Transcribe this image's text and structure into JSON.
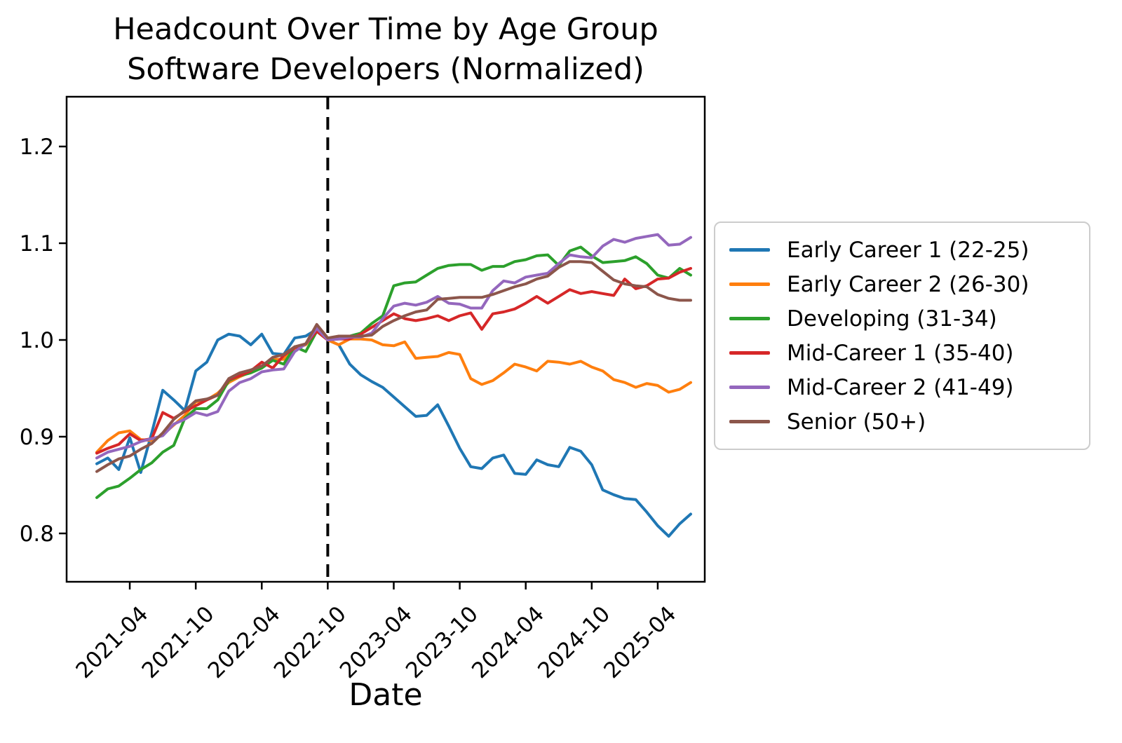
{
  "header": {
    "title_line1": "Headcount Over Time by Age Group",
    "title_line2": "Software Developers (Normalized)"
  },
  "axes": {
    "x_label": "Date",
    "y_tick_labels": [
      "0.8",
      "0.9",
      "1.0",
      "1.1",
      "1.2"
    ],
    "y_tick_values": [
      0.8,
      0.9,
      1.0,
      1.1,
      1.2
    ],
    "x_tick_labels": [
      "2021-04",
      "2021-10",
      "2022-04",
      "2022-10",
      "2023-04",
      "2023-10",
      "2024-04",
      "2024-10",
      "2025-04"
    ],
    "x_tick_month_indices": [
      3,
      9,
      15,
      21,
      27,
      33,
      39,
      45,
      51
    ]
  },
  "chart_data": {
    "type": "line",
    "title": "Headcount Over Time by Age Group\nSoftware Developers (Normalized)",
    "xlabel": "Date",
    "ylabel": "",
    "ylim": [
      0.75,
      1.251
    ],
    "grid": false,
    "legend_position": "right-outside",
    "reference_line": {
      "style": "vertical-dashed",
      "x": "2022-10",
      "month_index": 21,
      "color": "#000000",
      "note": "normalization point where all series equal 1.0"
    },
    "x": [
      "2021-01",
      "2021-02",
      "2021-03",
      "2021-04",
      "2021-05",
      "2021-06",
      "2021-07",
      "2021-08",
      "2021-09",
      "2021-10",
      "2021-11",
      "2021-12",
      "2022-01",
      "2022-02",
      "2022-03",
      "2022-04",
      "2022-05",
      "2022-06",
      "2022-07",
      "2022-08",
      "2022-09",
      "2022-10",
      "2022-11",
      "2022-12",
      "2023-01",
      "2023-02",
      "2023-03",
      "2023-04",
      "2023-05",
      "2023-06",
      "2023-07",
      "2023-08",
      "2023-09",
      "2023-10",
      "2023-11",
      "2023-12",
      "2024-01",
      "2024-02",
      "2024-03",
      "2024-04",
      "2024-05",
      "2024-06",
      "2024-07",
      "2024-08",
      "2024-09",
      "2024-10",
      "2024-11",
      "2024-12",
      "2025-01",
      "2025-02",
      "2025-03",
      "2025-04",
      "2025-05",
      "2025-06",
      "2025-07"
    ],
    "series": [
      {
        "name": "Early Career 1 (22-25)",
        "color": "#1f77b4",
        "values": [
          0.872,
          0.878,
          0.866,
          0.899,
          0.863,
          0.904,
          0.948,
          0.938,
          0.927,
          0.968,
          0.977,
          1.0,
          1.006,
          1.004,
          0.995,
          1.006,
          0.986,
          0.985,
          1.002,
          1.004,
          1.011,
          1.0,
          0.995,
          0.975,
          0.964,
          0.957,
          0.951,
          0.941,
          0.931,
          0.921,
          0.922,
          0.933,
          0.911,
          0.888,
          0.869,
          0.867,
          0.878,
          0.881,
          0.862,
          0.861,
          0.876,
          0.871,
          0.869,
          0.889,
          0.885,
          0.871,
          0.845,
          0.84,
          0.836,
          0.835,
          0.822,
          0.808,
          0.797,
          0.81,
          0.82
        ]
      },
      {
        "name": "Early Career 2 (26-30)",
        "color": "#ff7f0e",
        "values": [
          0.884,
          0.896,
          0.904,
          0.906,
          0.897,
          0.896,
          0.902,
          0.912,
          0.922,
          0.936,
          0.938,
          0.945,
          0.956,
          0.962,
          0.967,
          0.971,
          0.98,
          0.98,
          0.991,
          0.995,
          1.009,
          1.0,
          0.995,
          1.001,
          1.001,
          1.0,
          0.995,
          0.994,
          0.998,
          0.981,
          0.982,
          0.983,
          0.987,
          0.985,
          0.96,
          0.954,
          0.958,
          0.966,
          0.975,
          0.972,
          0.968,
          0.978,
          0.977,
          0.975,
          0.978,
          0.972,
          0.968,
          0.959,
          0.956,
          0.951,
          0.955,
          0.953,
          0.946,
          0.949,
          0.956
        ]
      },
      {
        "name": "Developing (31-34)",
        "color": "#2ca02c",
        "values": [
          0.837,
          0.846,
          0.849,
          0.857,
          0.866,
          0.873,
          0.884,
          0.891,
          0.919,
          0.929,
          0.929,
          0.938,
          0.958,
          0.963,
          0.966,
          0.971,
          0.979,
          0.975,
          0.993,
          0.988,
          1.009,
          1.0,
          1.002,
          1.004,
          1.007,
          1.017,
          1.025,
          1.056,
          1.059,
          1.06,
          1.067,
          1.074,
          1.077,
          1.078,
          1.078,
          1.072,
          1.076,
          1.076,
          1.081,
          1.083,
          1.087,
          1.088,
          1.077,
          1.092,
          1.096,
          1.087,
          1.08,
          1.081,
          1.082,
          1.086,
          1.079,
          1.067,
          1.064,
          1.074,
          1.067
        ]
      },
      {
        "name": "Mid-Career 1 (35-40)",
        "color": "#d62728",
        "values": [
          0.883,
          0.888,
          0.892,
          0.903,
          0.896,
          0.898,
          0.925,
          0.919,
          0.926,
          0.932,
          0.938,
          0.943,
          0.959,
          0.963,
          0.968,
          0.977,
          0.971,
          0.984,
          0.992,
          0.996,
          1.009,
          1.0,
          1.001,
          1.001,
          1.006,
          1.013,
          1.02,
          1.027,
          1.022,
          1.02,
          1.022,
          1.025,
          1.02,
          1.025,
          1.028,
          1.011,
          1.027,
          1.029,
          1.032,
          1.038,
          1.045,
          1.038,
          1.045,
          1.052,
          1.048,
          1.05,
          1.048,
          1.046,
          1.063,
          1.053,
          1.056,
          1.063,
          1.064,
          1.07,
          1.074
        ]
      },
      {
        "name": "Mid-Career 2 (41-49)",
        "color": "#9467bd",
        "values": [
          0.878,
          0.884,
          0.887,
          0.89,
          0.895,
          0.898,
          0.901,
          0.913,
          0.918,
          0.925,
          0.922,
          0.926,
          0.947,
          0.956,
          0.96,
          0.967,
          0.969,
          0.97,
          0.988,
          0.996,
          1.012,
          1.0,
          1.001,
          1.003,
          1.003,
          1.007,
          1.022,
          1.035,
          1.038,
          1.036,
          1.039,
          1.045,
          1.038,
          1.037,
          1.033,
          1.033,
          1.051,
          1.061,
          1.059,
          1.065,
          1.067,
          1.069,
          1.079,
          1.088,
          1.086,
          1.085,
          1.097,
          1.104,
          1.101,
          1.105,
          1.107,
          1.109,
          1.098,
          1.099,
          1.106
        ]
      },
      {
        "name": "Senior (50+)",
        "color": "#8c564b",
        "values": [
          0.864,
          0.871,
          0.877,
          0.88,
          0.887,
          0.893,
          0.904,
          0.918,
          0.927,
          0.937,
          0.939,
          0.943,
          0.96,
          0.966,
          0.969,
          0.973,
          0.982,
          0.985,
          0.993,
          0.996,
          1.016,
          1.002,
          1.004,
          1.004,
          1.004,
          1.005,
          1.014,
          1.02,
          1.025,
          1.029,
          1.031,
          1.042,
          1.043,
          1.044,
          1.044,
          1.044,
          1.047,
          1.051,
          1.055,
          1.058,
          1.063,
          1.066,
          1.075,
          1.081,
          1.081,
          1.08,
          1.071,
          1.062,
          1.058,
          1.056,
          1.055,
          1.047,
          1.043,
          1.041,
          1.041
        ]
      }
    ]
  }
}
